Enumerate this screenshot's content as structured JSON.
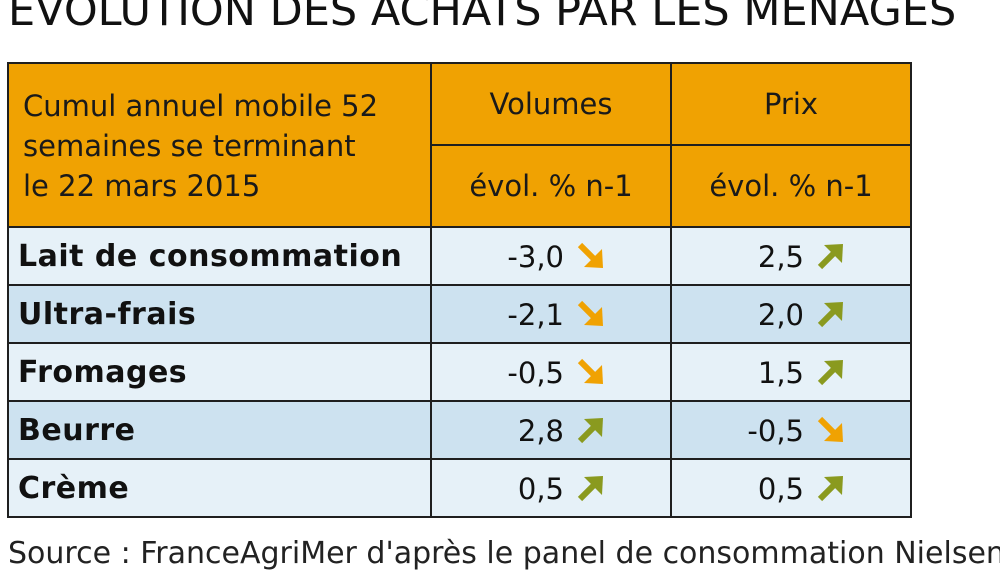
{
  "title": "EVOLUTION DES ACHATS PAR LES MENAGES",
  "table": {
    "header_main": [
      "Cumul annuel mobile 52",
      "semaines se terminant",
      "le 22 mars 2015"
    ],
    "col_volumes": "Volumes",
    "col_prix": "Prix",
    "sub_volumes": "évol. % n-1",
    "sub_prix": "évol. % n-1",
    "rows": [
      {
        "label": "Lait de consommation",
        "volumes": "-3,0",
        "volumes_trend": "down",
        "prix": "2,5",
        "prix_trend": "up"
      },
      {
        "label": "Ultra-frais",
        "volumes": "-2,1",
        "volumes_trend": "down",
        "prix": "2,0",
        "prix_trend": "up"
      },
      {
        "label": "Fromages",
        "volumes": "-0,5",
        "volumes_trend": "down",
        "prix": "1,5",
        "prix_trend": "up"
      },
      {
        "label": "Beurre",
        "volumes": "2,8",
        "volumes_trend": "up",
        "prix": "-0,5",
        "prix_trend": "down"
      },
      {
        "label": "Crème",
        "volumes": "0,5",
        "volumes_trend": "up",
        "prix": "0,5",
        "prix_trend": "up"
      }
    ]
  },
  "colors": {
    "header_bg": "#f0a202",
    "row_light": "#e6f1f8",
    "row_dark": "#cde2f0",
    "arrow_up": "#8a9a1f",
    "arrow_down": "#f0a202"
  },
  "source": "Source : FranceAgriMer d'après le panel de consommation Nielsen"
}
